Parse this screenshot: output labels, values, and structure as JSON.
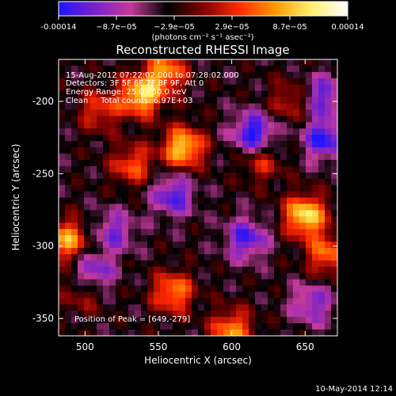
{
  "colorbar": {
    "ticks": [
      "-0.00014",
      "−8.7e−05",
      "−2.9e−05",
      "2.9e−05",
      "8.7e−05",
      "0.00014"
    ],
    "unit_label": "(photons cm⁻² s⁻¹ asec⁻²)",
    "colors": [
      "#1e14ff",
      "#7a22c8",
      "#c33a9a",
      "#000000",
      "#7d0000",
      "#ff2a00",
      "#ff9a00",
      "#fff070",
      "#ffffff"
    ]
  },
  "chart_data": {
    "type": "heatmap",
    "title": "Reconstructed RHESSI Image",
    "xlabel": "Heliocentric X (arcsec)",
    "ylabel": "Heliocentric Y (arcsec)",
    "xlim": [
      482,
      672
    ],
    "ylim": [
      -362,
      -171
    ],
    "x_ticks": [
      500,
      550,
      600,
      650
    ],
    "y_ticks": [
      -200,
      -250,
      -300,
      -350
    ],
    "color_range": [
      -0.00014,
      0.00014
    ],
    "annotations": {
      "time": "15-Aug-2012 07:22:02.000 to 07:28:02.000",
      "detectors": "Detectors: 3F 5F 6F 7F 8F 9F, Att 0",
      "energy": "Energy Range: 25.0 - 50.0 keV",
      "clean": "Clean     Total counts: 6.97E+03",
      "peak": "Position of Peak = [649,-279]"
    },
    "peak_position": [
      649,
      -279
    ],
    "hot_spots": [
      {
        "x": 538,
        "y": -196,
        "v": 0.00013
      },
      {
        "x": 555,
        "y": -180,
        "v": 0.0001
      },
      {
        "x": 567,
        "y": -232,
        "v": 0.00013
      },
      {
        "x": 650,
        "y": -279,
        "v": 0.00014
      },
      {
        "x": 488,
        "y": -296,
        "v": 0.00011
      },
      {
        "x": 560,
        "y": -332,
        "v": 0.0001
      },
      {
        "x": 600,
        "y": -358,
        "v": 0.0001
      },
      {
        "x": 532,
        "y": -244,
        "v": 8e-05
      },
      {
        "x": 510,
        "y": -206,
        "v": 7e-05
      },
      {
        "x": 665,
        "y": -306,
        "v": 9e-05
      },
      {
        "x": 620,
        "y": -242,
        "v": 6e-05
      },
      {
        "x": 500,
        "y": -330,
        "v": 7e-05
      },
      {
        "x": 640,
        "y": -200,
        "v": 6e-05
      }
    ],
    "cold_spots": [
      {
        "x": 615,
        "y": -222,
        "v": -0.00011
      },
      {
        "x": 505,
        "y": -320,
        "v": -0.0001
      },
      {
        "x": 663,
        "y": -226,
        "v": -0.0001
      },
      {
        "x": 662,
        "y": -196,
        "v": -8e-05
      },
      {
        "x": 560,
        "y": -265,
        "v": -9e-05
      },
      {
        "x": 610,
        "y": -295,
        "v": -9e-05
      },
      {
        "x": 655,
        "y": -340,
        "v": -7e-05
      },
      {
        "x": 520,
        "y": -290,
        "v": -7e-05
      }
    ]
  },
  "footer": {
    "date": "10-May-2014 12:14"
  }
}
